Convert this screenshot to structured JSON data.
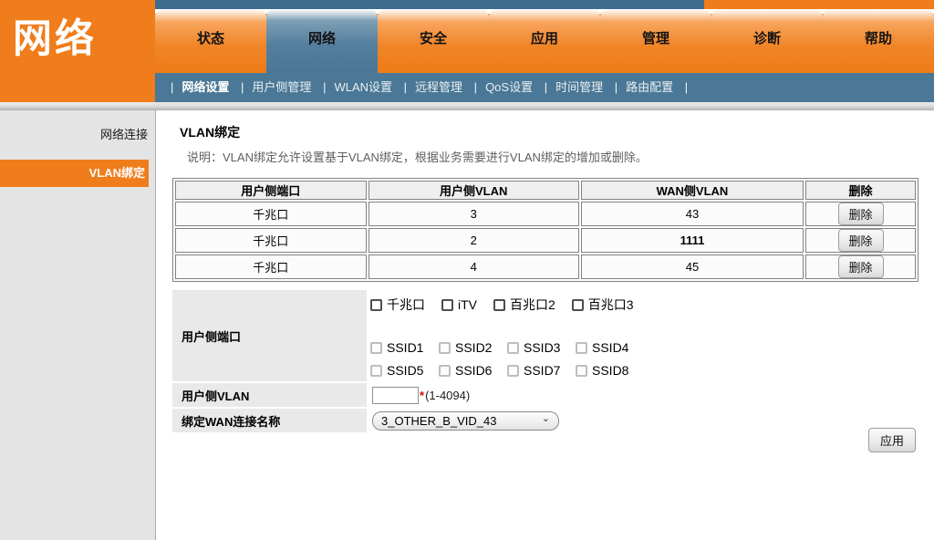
{
  "header": {
    "section_title": "网络",
    "tabs": [
      "状态",
      "网络",
      "安全",
      "应用",
      "管理",
      "诊断",
      "帮助"
    ],
    "active_tab": "网络",
    "subnav": {
      "separator": "|",
      "items": [
        "网络设置",
        "用户侧管理",
        "WLAN设置",
        "远程管理",
        "QoS设置",
        "时间管理",
        "路由配置"
      ],
      "active_item": "网络设置"
    }
  },
  "sidebar": {
    "items": [
      {
        "label": "网络连接",
        "active": false
      },
      {
        "label": "VLAN绑定",
        "active": true
      }
    ]
  },
  "main": {
    "title": "VLAN绑定",
    "description": "说明：VLAN绑定允许设置基于VLAN绑定，根据业务需要进行VLAN绑定的增加或删除。",
    "table": {
      "headers": [
        "用户侧端口",
        "用户侧VLAN",
        "WAN侧VLAN",
        "删除"
      ],
      "rows": [
        {
          "port": "千兆口",
          "user_vlan": "3",
          "wan_vlan": "43",
          "delete_label": "删除"
        },
        {
          "port": "千兆口",
          "user_vlan": "2",
          "wan_vlan": "1111",
          "delete_label": "删除"
        },
        {
          "port": "千兆口",
          "user_vlan": "4",
          "wan_vlan": "45",
          "delete_label": "删除"
        }
      ]
    },
    "form": {
      "port_label": "用户侧端口",
      "port_checkboxes": [
        "千兆口",
        "iTV",
        "百兆口2",
        "百兆口3"
      ],
      "ssid_checkboxes_row1": [
        "SSID1",
        "SSID2",
        "SSID3",
        "SSID4"
      ],
      "ssid_checkboxes_row2": [
        "SSID5",
        "SSID6",
        "SSID7",
        "SSID8"
      ],
      "vlan_label": "用户侧VLAN",
      "vlan_value": "",
      "vlan_required_mark": "*",
      "vlan_hint": "(1-4094)",
      "wan_label": "绑定WAN连接名称",
      "wan_selected": "3_OTHER_B_VID_43"
    },
    "apply_label": "应用"
  },
  "colors": {
    "accent_orange": "#ef7d1c",
    "steel_blue": "#4a7896",
    "top_strip_blue": "#3e6c8e",
    "sidebar_gray": "#e4e4e4",
    "required_red": "#e00000"
  }
}
